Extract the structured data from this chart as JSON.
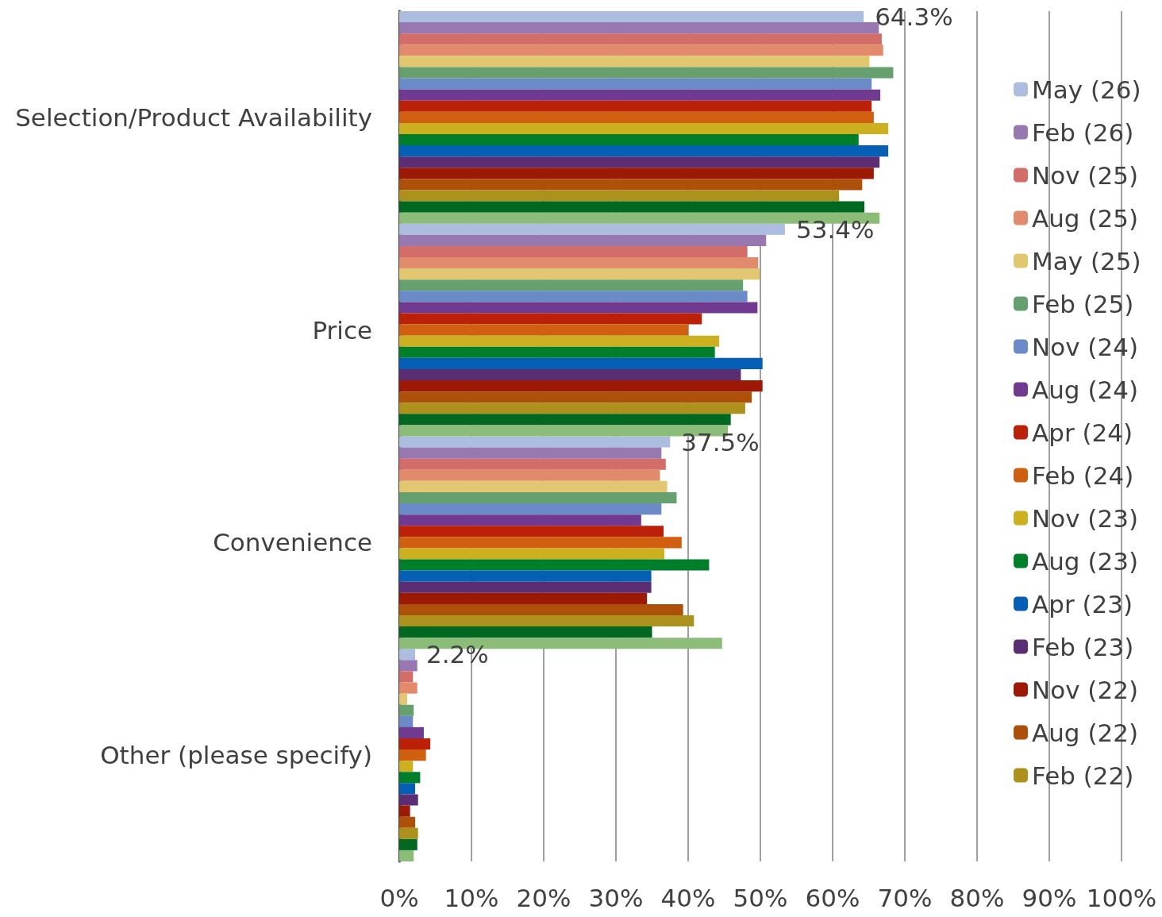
{
  "chart_data": {
    "type": "bar",
    "orientation": "horizontal",
    "categories": [
      "Selection/Product Availability",
      "Price",
      "Convenience",
      "Other (please specify)"
    ],
    "series": [
      {
        "name": "May (26)",
        "color": "#adbde0",
        "values": [
          64.3,
          53.4,
          37.5,
          2.2
        ],
        "value_labels": [
          "64.3%",
          "53.4%",
          "37.5%",
          "2.2%"
        ]
      },
      {
        "name": "Feb (26)",
        "color": "#9778b0",
        "values": [
          66.4,
          50.8,
          36.3,
          2.5
        ]
      },
      {
        "name": "Nov (25)",
        "color": "#d26d69",
        "values": [
          66.8,
          48.2,
          36.9,
          1.9
        ]
      },
      {
        "name": "Aug (25)",
        "color": "#e28b6c",
        "values": [
          67.0,
          49.7,
          36.1,
          2.5
        ]
      },
      {
        "name": "May (25)",
        "color": "#e1c870",
        "values": [
          65.1,
          49.9,
          37.1,
          1.1
        ]
      },
      {
        "name": "Feb (25)",
        "color": "#67a06f",
        "values": [
          68.4,
          47.6,
          38.4,
          2.0
        ]
      },
      {
        "name": "Nov (24)",
        "color": "#6a8ac8",
        "values": [
          65.4,
          48.2,
          36.3,
          1.9
        ]
      },
      {
        "name": "Aug (24)",
        "color": "#6f3a8f",
        "values": [
          66.6,
          49.6,
          33.5,
          3.4
        ]
      },
      {
        "name": "Apr (24)",
        "color": "#bb2008",
        "values": [
          65.4,
          41.9,
          36.6,
          4.3
        ]
      },
      {
        "name": "Feb (24)",
        "color": "#d06010",
        "values": [
          65.7,
          40.0,
          39.1,
          3.7
        ]
      },
      {
        "name": "Nov (23)",
        "color": "#ccb020",
        "values": [
          67.7,
          44.3,
          36.7,
          1.9
        ]
      },
      {
        "name": "Aug (23)",
        "color": "#007f2a",
        "values": [
          63.6,
          43.7,
          42.9,
          2.9
        ]
      },
      {
        "name": "Apr (23)",
        "color": "#0560b5",
        "values": [
          67.7,
          50.3,
          34.9,
          2.2
        ]
      },
      {
        "name": "Feb (23)",
        "color": "#5b2e74",
        "values": [
          66.5,
          47.3,
          34.9,
          2.6
        ]
      },
      {
        "name": "Nov (22)",
        "color": "#9c1a05",
        "values": [
          65.7,
          50.3,
          34.3,
          1.5
        ]
      },
      {
        "name": "Aug (22)",
        "color": "#ad510a",
        "values": [
          64.1,
          48.8,
          39.3,
          2.2
        ]
      },
      {
        "name": "Feb (22)",
        "color": "#ac921c",
        "values": [
          60.9,
          47.9,
          40.8,
          2.6
        ]
      },
      {
        "color": "#006820",
        "values": [
          64.4,
          45.9,
          35.0,
          2.5
        ]
      },
      {
        "color": "#8bbd78",
        "values": [
          66.5,
          45.5,
          44.7,
          2.0
        ]
      }
    ],
    "xlim": [
      0,
      100
    ],
    "xticks": [
      {
        "value": 0,
        "label": "0%"
      },
      {
        "value": 10,
        "label": "10%"
      },
      {
        "value": 20,
        "label": "20%"
      },
      {
        "value": 30,
        "label": "30%"
      },
      {
        "value": 40,
        "label": "40%"
      },
      {
        "value": 50,
        "label": "50%"
      },
      {
        "value": 60,
        "label": "60%"
      },
      {
        "value": 70,
        "label": "70%"
      },
      {
        "value": 80,
        "label": "80%"
      },
      {
        "value": 90,
        "label": "90%"
      },
      {
        "value": 100,
        "label": "100%"
      }
    ],
    "grid": "x",
    "legend": "right"
  }
}
